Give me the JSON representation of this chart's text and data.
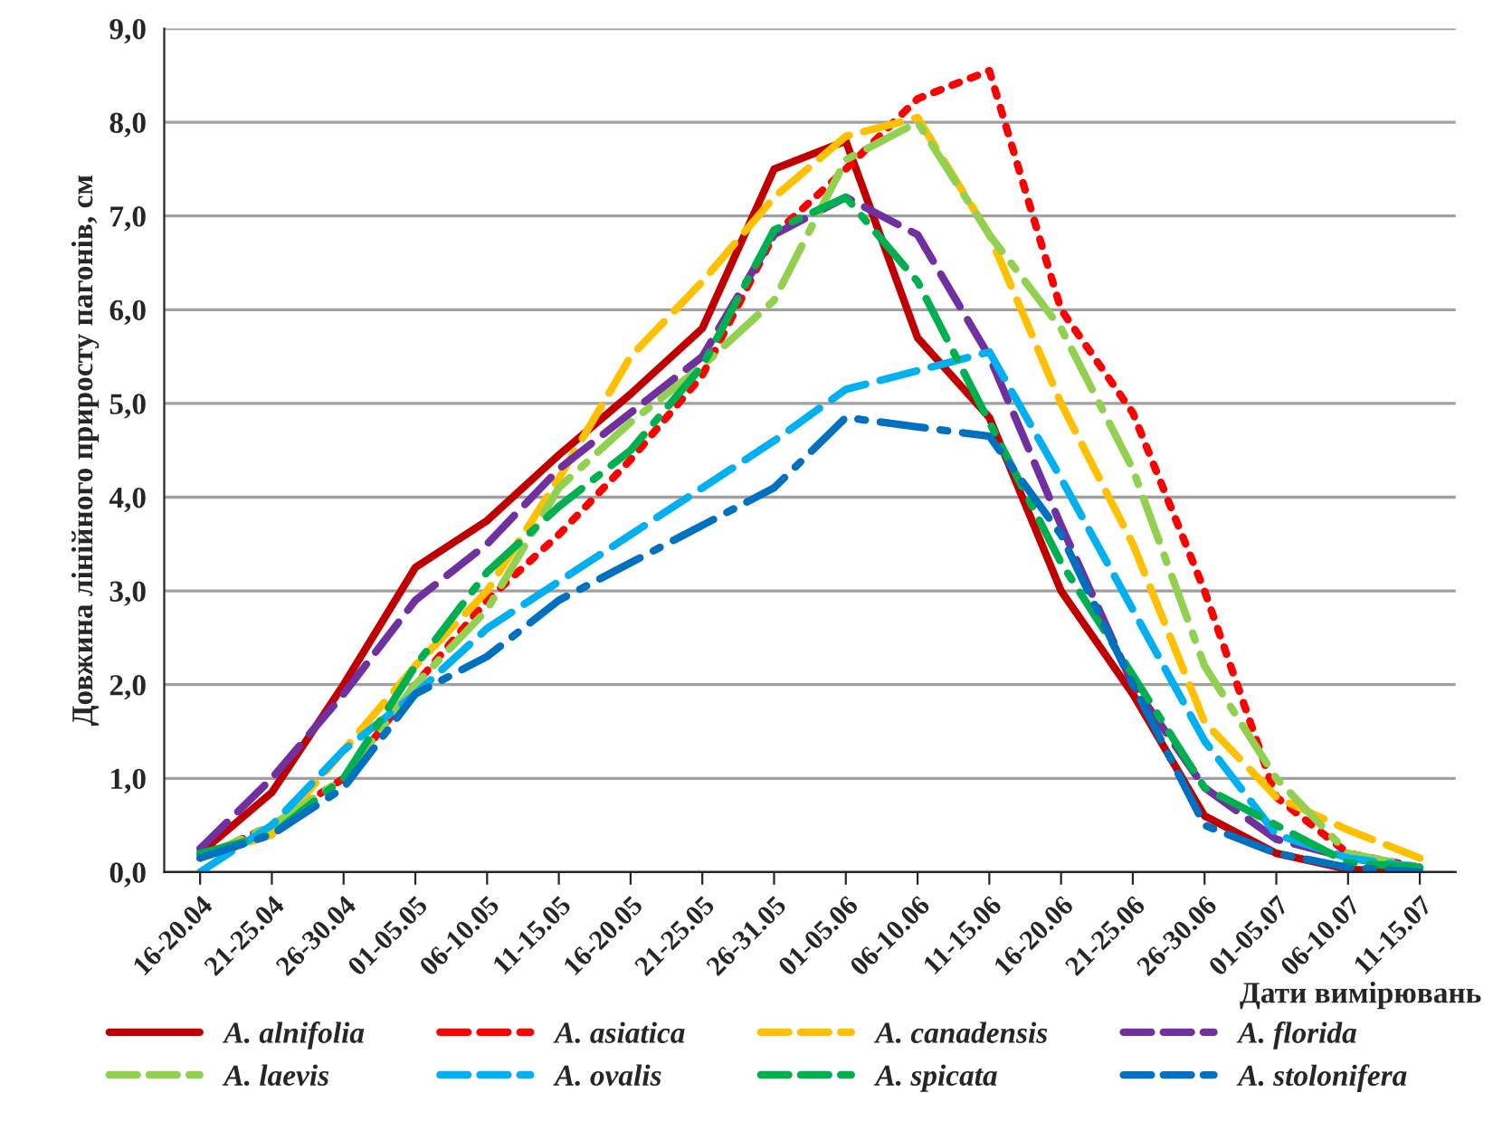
{
  "chart_data": {
    "type": "line",
    "xlabel": "Дати вимірювань",
    "ylabel": "Довжина лінійного приросту пагонів, см",
    "categories": [
      "16-20.04",
      "21-25.04",
      "26-30.04",
      "01-05.05",
      "06-10.05",
      "11-15.05",
      "16-20.05",
      "21-25.05",
      "26-31.05",
      "01-05.06",
      "06-10.06",
      "11-15.06",
      "16-20.06",
      "21-25.06",
      "26-30.06",
      "01-05.07",
      "06-10.07",
      "11-15.07"
    ],
    "ylim": [
      0,
      9
    ],
    "yticks": [
      {
        "value": 0,
        "label": "0,0"
      },
      {
        "value": 1,
        "label": "1,0"
      },
      {
        "value": 2,
        "label": "2,0"
      },
      {
        "value": 3,
        "label": "3,0"
      },
      {
        "value": 4,
        "label": "4,0"
      },
      {
        "value": 5,
        "label": "5,0"
      },
      {
        "value": 6,
        "label": "6,0"
      },
      {
        "value": 7,
        "label": "7,0"
      },
      {
        "value": 8,
        "label": "8,0"
      },
      {
        "value": 9,
        "label": "9,0"
      }
    ],
    "grid": "y",
    "legend": "bottom",
    "marker": "none",
    "series": [
      {
        "name": "A. alnifolia",
        "color": "#c00000",
        "line_style": "solid",
        "values": [
          0.2,
          0.85,
          2.0,
          3.25,
          3.75,
          4.45,
          5.1,
          5.8,
          7.5,
          7.8,
          5.7,
          4.85,
          3.0,
          1.9,
          0.6,
          0.2,
          0.03,
          0.0
        ]
      },
      {
        "name": "A. asiatica",
        "color": "#ff0000",
        "line_style": "dotted",
        "values": [
          0.15,
          0.5,
          1.0,
          2.0,
          2.9,
          3.6,
          4.4,
          5.3,
          6.8,
          7.5,
          8.25,
          8.55,
          6.0,
          4.9,
          3.0,
          0.8,
          0.2,
          0.05
        ]
      },
      {
        "name": "A. canadensis",
        "color": "#ffc000",
        "line_style": "dashed",
        "values": [
          0.15,
          0.4,
          1.3,
          2.2,
          3.0,
          4.2,
          5.5,
          6.3,
          7.2,
          7.85,
          8.05,
          6.8,
          5.0,
          3.5,
          1.6,
          0.8,
          0.45,
          0.15
        ]
      },
      {
        "name": "A. florida",
        "color": "#7030a0",
        "line_style": "dashed",
        "values": [
          0.25,
          1.0,
          1.9,
          2.9,
          3.5,
          4.3,
          4.9,
          5.5,
          6.8,
          7.2,
          6.8,
          5.5,
          3.7,
          2.0,
          0.9,
          0.35,
          0.15,
          0.05
        ]
      },
      {
        "name": "A. laevis",
        "color": "#92d050",
        "line_style": "dashdot",
        "values": [
          0.15,
          0.5,
          1.0,
          2.0,
          2.8,
          4.1,
          4.8,
          5.4,
          6.1,
          7.6,
          8.0,
          6.8,
          5.8,
          4.3,
          2.2,
          1.0,
          0.2,
          0.05
        ]
      },
      {
        "name": "A. ovalis",
        "color": "#00b0f0",
        "line_style": "dashed",
        "values": [
          0.0,
          0.5,
          1.3,
          1.9,
          2.6,
          3.1,
          3.6,
          4.1,
          4.6,
          5.15,
          5.35,
          5.55,
          4.2,
          2.8,
          1.4,
          0.4,
          0.15,
          0.05
        ]
      },
      {
        "name": "A. spicata",
        "color": "#00b050",
        "line_style": "dashdot",
        "values": [
          0.2,
          0.4,
          1.0,
          2.2,
          3.2,
          3.9,
          4.5,
          5.4,
          6.85,
          7.2,
          6.3,
          4.8,
          3.3,
          2.1,
          0.9,
          0.5,
          0.1,
          0.05
        ]
      },
      {
        "name": "A. stolonifera",
        "color": "#0070c0",
        "line_style": "dashdot",
        "values": [
          0.15,
          0.4,
          0.9,
          1.9,
          2.3,
          2.9,
          3.3,
          3.7,
          4.1,
          4.85,
          4.75,
          4.65,
          3.6,
          2.0,
          0.5,
          0.2,
          0.05,
          0.0
        ]
      }
    ]
  }
}
